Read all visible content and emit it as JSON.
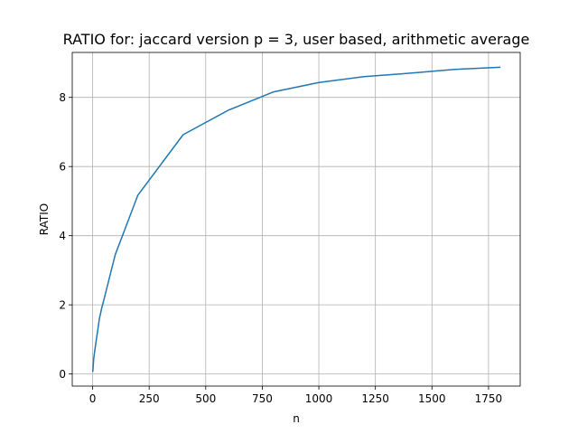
{
  "chart_data": {
    "type": "line",
    "title": "RATIO for: jaccard version p = 3, user based, arithmetic average",
    "xlabel": "n",
    "ylabel": "RATIO",
    "xlim": [
      -90,
      1890
    ],
    "ylim": [
      -0.35,
      9.3
    ],
    "xticks": [
      0,
      250,
      500,
      750,
      1000,
      1250,
      1500,
      1750
    ],
    "yticks": [
      0,
      2,
      4,
      6,
      8
    ],
    "grid": true,
    "series": [
      {
        "name": "",
        "color": "#1f77b4",
        "x": [
          1,
          5,
          10,
          20,
          30,
          40,
          50,
          100,
          200,
          400,
          600,
          800,
          1000,
          1200,
          1400,
          1600,
          1800
        ],
        "y": [
          0.08,
          0.45,
          0.7,
          1.15,
          1.6,
          1.9,
          2.15,
          3.45,
          5.17,
          6.92,
          7.63,
          8.16,
          8.43,
          8.6,
          8.7,
          8.81,
          8.87
        ]
      }
    ]
  }
}
